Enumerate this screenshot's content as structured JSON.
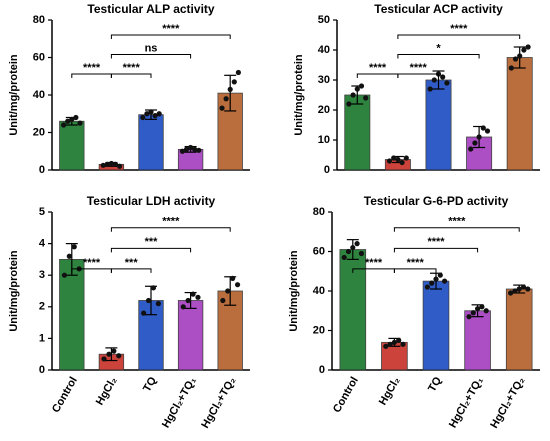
{
  "chart_data": [
    {
      "type": "bar",
      "title": "Testicular ALP activity",
      "y_label": "Unit/mg/protein",
      "categories": [
        null,
        null,
        null,
        null,
        null
      ],
      "values": [
        26,
        3,
        29.5,
        11,
        41
      ],
      "errors": [
        2,
        1,
        2.5,
        1.5,
        9.5
      ],
      "points": [
        [
          24,
          26,
          27,
          28,
          25
        ],
        [
          2.5,
          3,
          3.5,
          3,
          2
        ],
        [
          28,
          30,
          31,
          29,
          30
        ],
        [
          10,
          11,
          12,
          11,
          10.5
        ],
        [
          33,
          38,
          43,
          47,
          52
        ]
      ],
      "colors": [
        "#1d7a2f",
        "#c8342c",
        "#1f4fc4",
        "#a63fc0",
        "#b5622e"
      ],
      "ylim": [
        0,
        80
      ],
      "yticks": [
        0,
        20,
        40,
        60,
        80
      ],
      "comparisons": [
        {
          "pair": [
            0,
            1
          ],
          "label": "****"
        },
        {
          "pair": [
            1,
            2
          ],
          "label": "****"
        },
        {
          "pair": [
            1,
            3
          ],
          "label": "ns"
        },
        {
          "pair": [
            1,
            4
          ],
          "label": "****"
        }
      ]
    },
    {
      "type": "bar",
      "title": "Testicular ACP activity",
      "y_label": "Unit/mg/protein",
      "categories": [
        null,
        null,
        null,
        null,
        null
      ],
      "values": [
        25,
        3.5,
        30,
        11,
        37.5
      ],
      "errors": [
        3,
        1,
        3,
        3.5,
        3.5
      ],
      "points": [
        [
          22,
          25,
          27,
          28,
          24
        ],
        [
          3,
          4,
          3.5,
          2.5,
          4
        ],
        [
          27,
          30,
          32,
          31,
          29
        ],
        [
          7,
          9,
          11,
          14,
          13
        ],
        [
          34,
          37,
          38,
          40,
          41
        ]
      ],
      "colors": [
        "#1d7a2f",
        "#c8342c",
        "#1f4fc4",
        "#a63fc0",
        "#b5622e"
      ],
      "ylim": [
        0,
        50
      ],
      "yticks": [
        0,
        10,
        20,
        30,
        40,
        50
      ],
      "comparisons": [
        {
          "pair": [
            0,
            1
          ],
          "label": "****"
        },
        {
          "pair": [
            1,
            2
          ],
          "label": "****"
        },
        {
          "pair": [
            1,
            3
          ],
          "label": "*"
        },
        {
          "pair": [
            1,
            4
          ],
          "label": "****"
        }
      ]
    },
    {
      "type": "bar",
      "title": "Testicular LDH activity",
      "y_label": "Unit/mg/protein",
      "categories": [
        "Control",
        "HgCl₂",
        "TQ",
        "HgCl₂+TQ₁",
        "HgCl₂+TQ₂"
      ],
      "values": [
        3.5,
        0.5,
        2.2,
        2.2,
        2.5
      ],
      "errors": [
        0.5,
        0.2,
        0.45,
        0.25,
        0.45
      ],
      "points": [
        [
          3.0,
          3.6,
          3.9,
          3.2
        ],
        [
          0.35,
          0.5,
          0.6,
          0.45
        ],
        [
          1.8,
          2.2,
          2.6,
          2.1
        ],
        [
          2.0,
          2.2,
          2.4,
          2.3
        ],
        [
          2.2,
          2.5,
          2.9,
          2.7
        ]
      ],
      "colors": [
        "#1d7a2f",
        "#c8342c",
        "#1f4fc4",
        "#a63fc0",
        "#b5622e"
      ],
      "ylim": [
        0,
        5
      ],
      "yticks": [
        0,
        1,
        2,
        3,
        4,
        5
      ],
      "comparisons": [
        {
          "pair": [
            0,
            1
          ],
          "label": "****"
        },
        {
          "pair": [
            1,
            2
          ],
          "label": "***"
        },
        {
          "pair": [
            1,
            3
          ],
          "label": "***"
        },
        {
          "pair": [
            1,
            4
          ],
          "label": "****"
        }
      ]
    },
    {
      "type": "bar",
      "title": "Testicular G-6-PD activity",
      "y_label": "Unit/mg/protein",
      "categories": [
        "Control",
        "HgCl₂",
        "TQ",
        "HgCl₂+TQ₁",
        "HgCl₂+TQ₂"
      ],
      "values": [
        61,
        14,
        45,
        30,
        41
      ],
      "errors": [
        5,
        2,
        4,
        3,
        2
      ],
      "points": [
        [
          57,
          60,
          62,
          64,
          59
        ],
        [
          12,
          13,
          14,
          15,
          13
        ],
        [
          42,
          44,
          46,
          48,
          45
        ],
        [
          27,
          29,
          31,
          32,
          30
        ],
        [
          39,
          40,
          41,
          42,
          41
        ]
      ],
      "colors": [
        "#1d7a2f",
        "#c8342c",
        "#1f4fc4",
        "#a63fc0",
        "#b5622e"
      ],
      "ylim": [
        0,
        80
      ],
      "yticks": [
        0,
        20,
        40,
        60,
        80
      ],
      "comparisons": [
        {
          "pair": [
            0,
            1
          ],
          "label": "****"
        },
        {
          "pair": [
            1,
            2
          ],
          "label": "****"
        },
        {
          "pair": [
            1,
            3
          ],
          "label": "****"
        },
        {
          "pair": [
            1,
            4
          ],
          "label": "****"
        }
      ]
    }
  ]
}
